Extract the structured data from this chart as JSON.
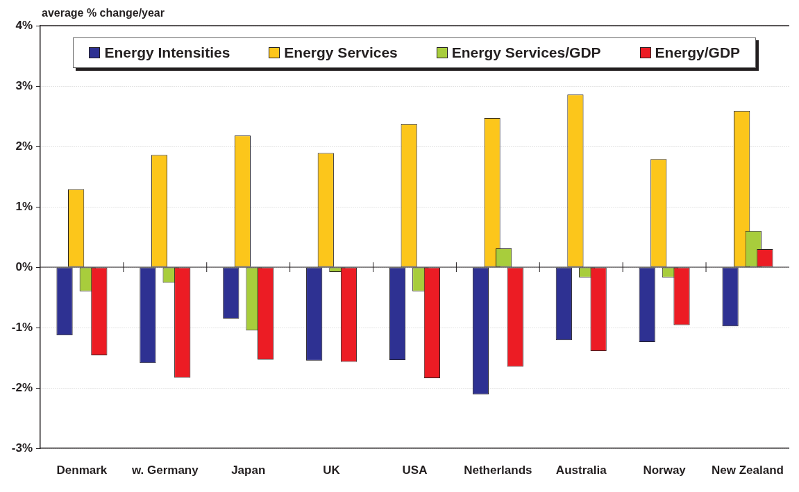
{
  "chart_data": {
    "type": "bar",
    "ylabel": "average % change/year",
    "categories": [
      "Denmark",
      "w. Germany",
      "Japan",
      "UK",
      "USA",
      "Netherlands",
      "Australia",
      "Norway",
      "New Zealand"
    ],
    "series": [
      {
        "name": "Energy Intensities",
        "color": "#2e3192",
        "values": [
          -1.13,
          -1.59,
          -0.85,
          -1.55,
          -1.54,
          -2.11,
          -1.21,
          -1.24,
          -0.98
        ]
      },
      {
        "name": "Energy Services",
        "color": "#fcc61b",
        "values": [
          1.29,
          1.86,
          2.18,
          1.89,
          2.37,
          2.47,
          2.86,
          1.79,
          2.59
        ]
      },
      {
        "name": "Energy Services/GDP",
        "color": "#a8cd3c",
        "values": [
          -0.4,
          -0.26,
          -1.05,
          -0.08,
          -0.4,
          0.31,
          -0.17,
          -0.17,
          0.6
        ]
      },
      {
        "name": "Energy/GDP",
        "color": "#ec1c24",
        "values": [
          -1.46,
          -1.83,
          -1.53,
          -1.57,
          -1.84,
          -1.65,
          -1.39,
          -0.96,
          0.3
        ]
      }
    ],
    "ylim": [
      -3,
      4
    ],
    "yticks": [
      {
        "value": -3,
        "label": "-3%"
      },
      {
        "value": -2,
        "label": "-2%"
      },
      {
        "value": -1,
        "label": "-1%"
      },
      {
        "value": 0,
        "label": "0%"
      },
      {
        "value": 1,
        "label": "1%"
      },
      {
        "value": 2,
        "label": "2%"
      },
      {
        "value": 3,
        "label": "3%"
      },
      {
        "value": 4,
        "label": "4%"
      }
    ],
    "grid": "y",
    "legend": "top"
  }
}
